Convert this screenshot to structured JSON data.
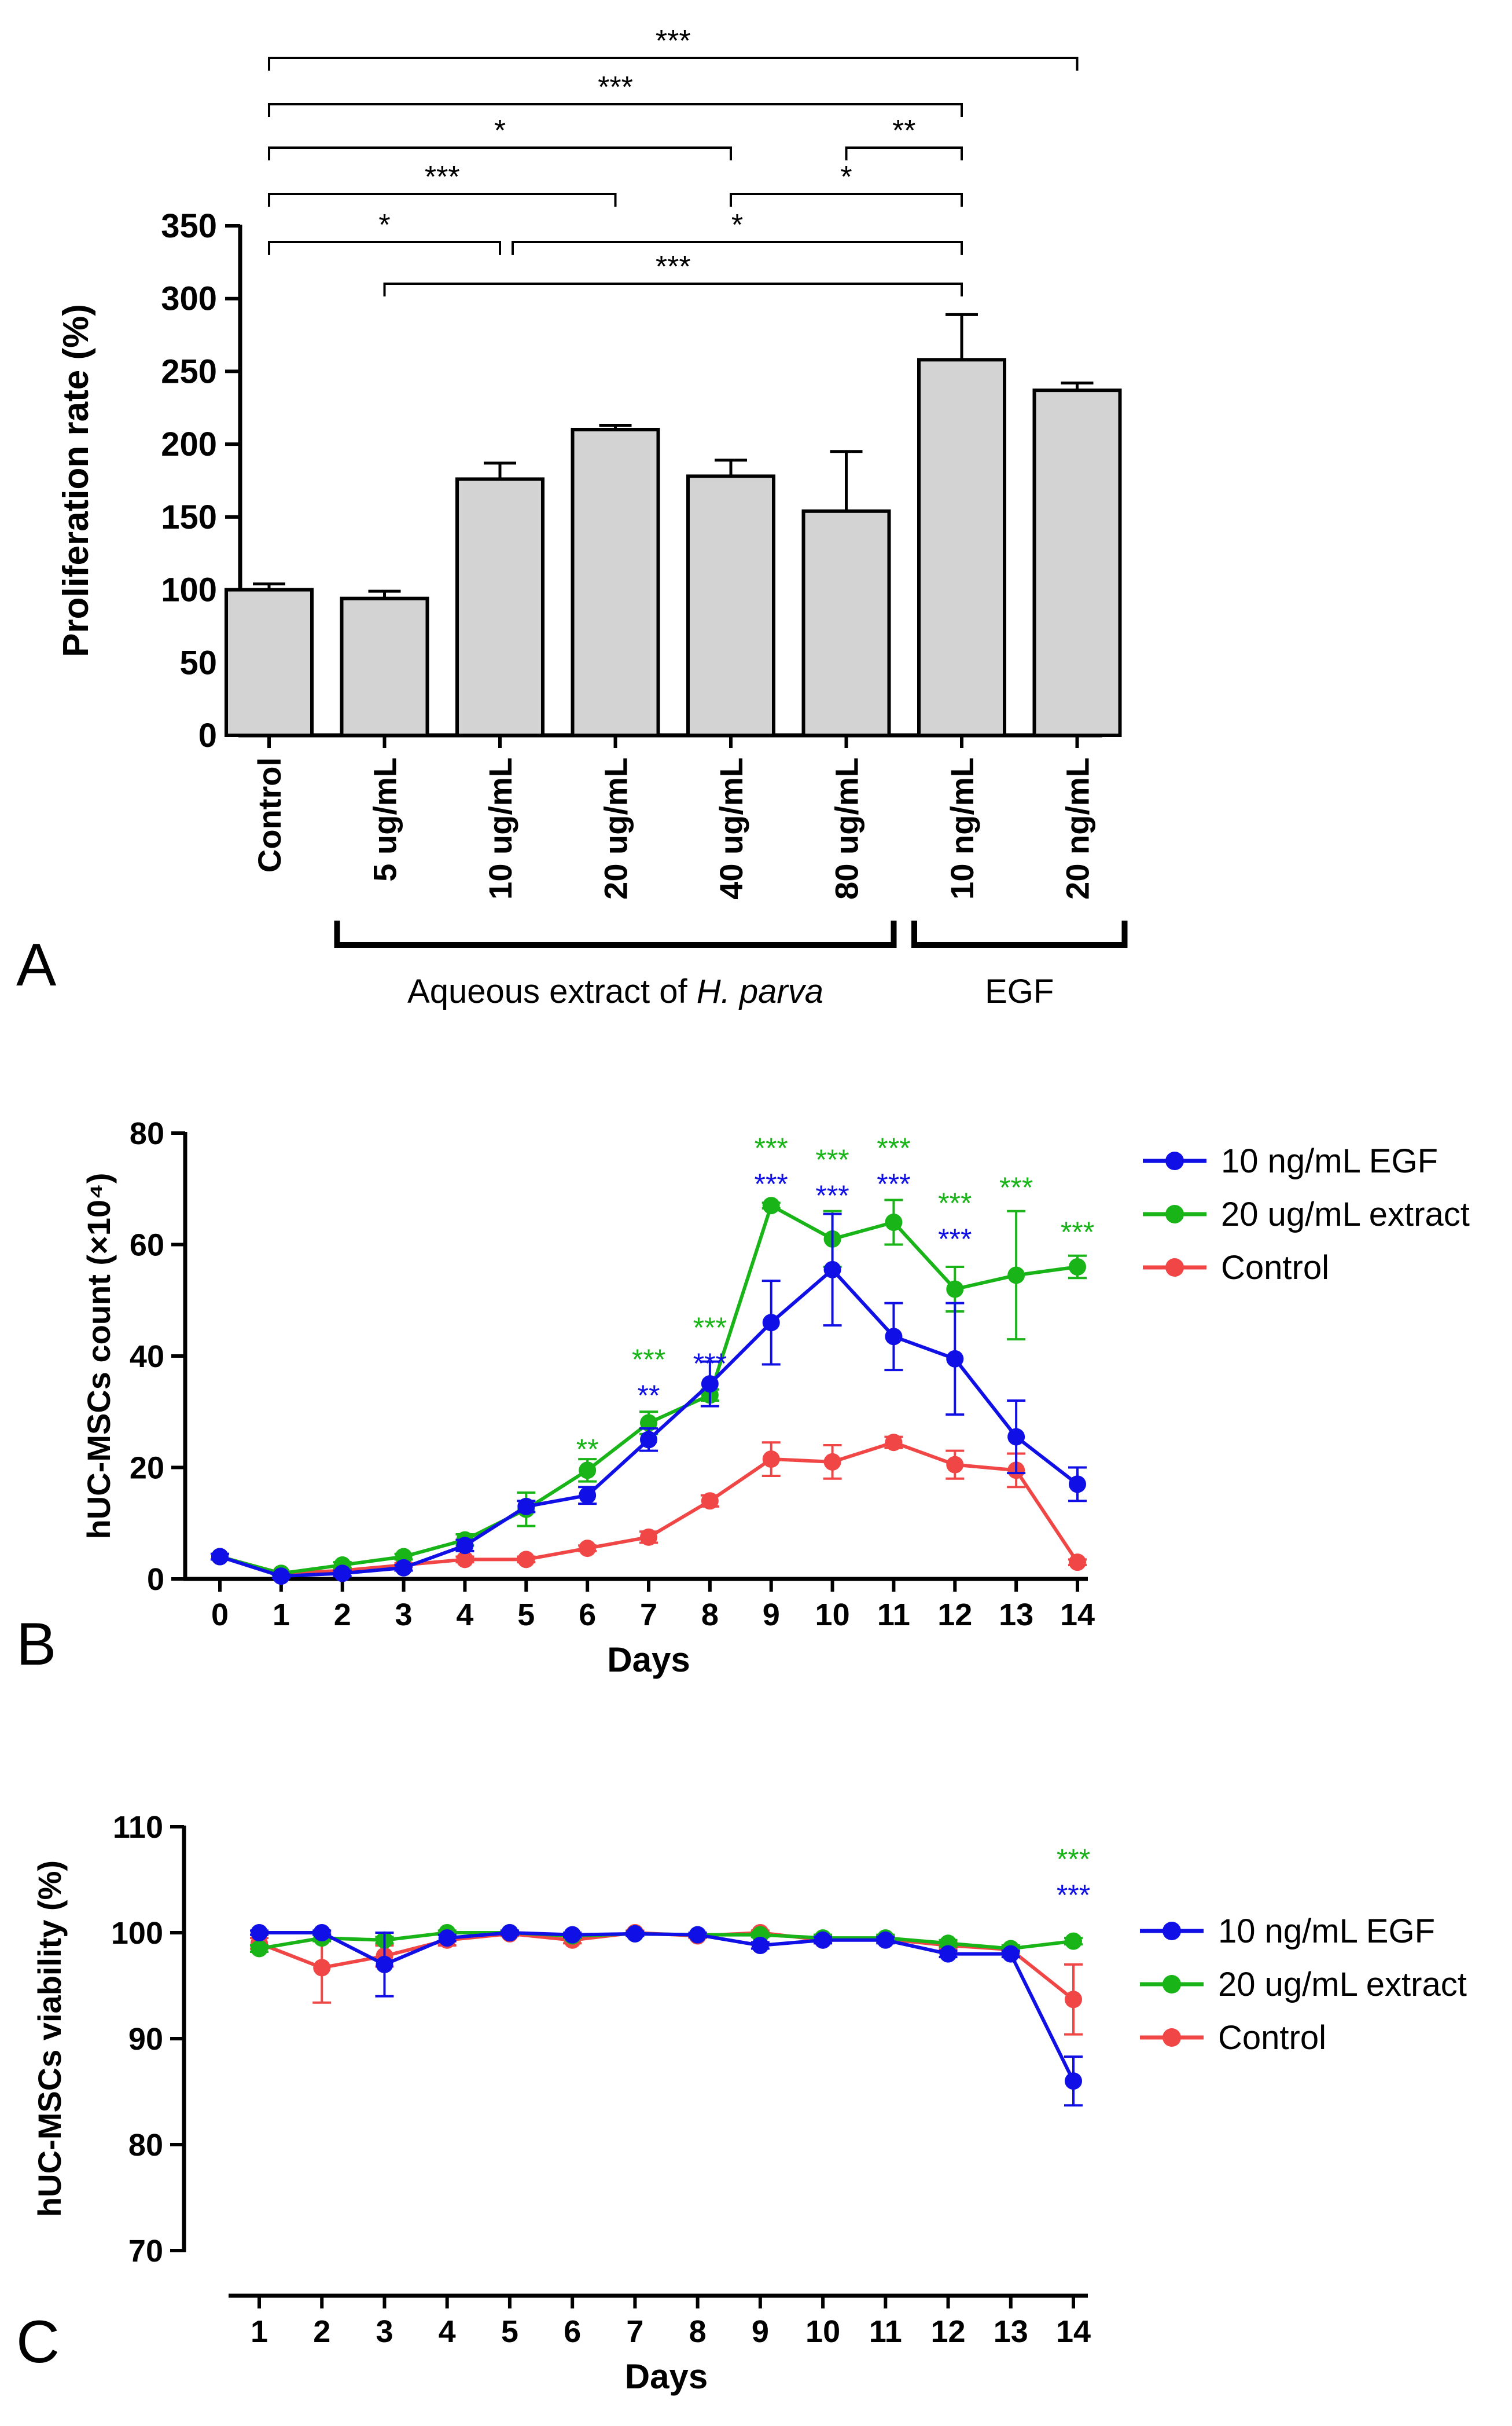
{
  "colors": {
    "blue": "#1010e6",
    "green": "#18b418",
    "red": "#f04646",
    "bar_fill": "#d3d3d3",
    "ink": "#000000"
  },
  "panels": {
    "a": {
      "letter": "A"
    },
    "b": {
      "letter": "B"
    },
    "c": {
      "letter": "C"
    }
  },
  "chart_data": [
    {
      "panel": "A",
      "type": "bar",
      "title": "",
      "ylabel": "Proliferation rate (%)",
      "xlabel": "",
      "ylim": [
        0,
        350
      ],
      "yticks": [
        "0",
        "50",
        "100",
        "150",
        "200",
        "250",
        "300",
        "350"
      ],
      "categories": [
        "Control",
        "5 ug/mL",
        "10 ug/mL",
        "20 ug/mL",
        "40 ug/mL",
        "80 ug/mL",
        "10 ng/mL",
        "20 ng/mL"
      ],
      "values": [
        100,
        94,
        176,
        210,
        178,
        154,
        258,
        237
      ],
      "errors": [
        4,
        5,
        11,
        3,
        11,
        41,
        31,
        5
      ],
      "groups": [
        {
          "label_prefix": "Aqueous extract of ",
          "label_italic": "H. parva",
          "from": 1,
          "to": 5
        },
        {
          "label_prefix": "EGF",
          "label_italic": "",
          "from": 6,
          "to": 7
        }
      ],
      "significance": [
        {
          "from": 0,
          "to": 7,
          "label": "***"
        },
        {
          "from": 0,
          "to": 6,
          "label": "***"
        },
        {
          "from": 0,
          "to": 4,
          "label": "*"
        },
        {
          "from": 5,
          "to": 6,
          "label": "**"
        },
        {
          "from": 0,
          "to": 3,
          "label": "***"
        },
        {
          "from": 4,
          "to": 6,
          "label": "*"
        },
        {
          "from": 0,
          "to": 2,
          "label": "*"
        },
        {
          "from": 2,
          "to": 6,
          "label": "*"
        },
        {
          "from": 1,
          "to": 6,
          "label": "***"
        }
      ]
    },
    {
      "panel": "B",
      "type": "line",
      "title": "",
      "ylabel": "hUC-MSCs count (×10⁴)",
      "xlabel": "Days",
      "ylim": [
        0,
        80
      ],
      "yticks": [
        "0",
        "20",
        "40",
        "60",
        "80"
      ],
      "x": [
        0,
        1,
        2,
        3,
        4,
        5,
        6,
        7,
        8,
        9,
        10,
        11,
        12,
        13,
        14
      ],
      "legend": "right",
      "series": [
        {
          "name": "10 ng/mL EGF",
          "color": "blue",
          "values": [
            4,
            0.5,
            1,
            2,
            6,
            13,
            15,
            25,
            35,
            46,
            55.5,
            43.5,
            39.5,
            25.5,
            17
          ],
          "errors": [
            0.5,
            0.3,
            0.5,
            0.5,
            1,
            1,
            1.5,
            2,
            4,
            7.5,
            10,
            6,
            10,
            6.5,
            3
          ]
        },
        {
          "name": "20 ug/mL extract",
          "color": "green",
          "values": [
            4,
            1,
            2.5,
            4,
            7,
            12.5,
            19.5,
            28,
            33,
            67,
            61,
            64,
            52,
            54.5,
            56
          ],
          "errors": [
            0.5,
            0.3,
            0.5,
            0.5,
            1,
            3,
            2,
            2,
            1,
            0.5,
            5,
            4,
            4,
            11.5,
            2
          ]
        },
        {
          "name": "Control",
          "color": "red",
          "values": [
            4,
            1,
            1.5,
            2.5,
            3.5,
            3.5,
            5.5,
            7.5,
            14,
            21.5,
            21,
            24.5,
            20.5,
            19.5,
            3
          ],
          "errors": [
            0.5,
            0.3,
            0.3,
            0.3,
            0.5,
            0.5,
            0.5,
            1,
            1,
            3,
            3,
            1,
            2.5,
            3,
            0.5
          ]
        }
      ],
      "annotations": [
        {
          "x": 6,
          "stars": [
            {
              "label": "**",
              "color": "green"
            }
          ]
        },
        {
          "x": 7,
          "stars": [
            {
              "label": "***",
              "color": "green"
            },
            {
              "label": "**",
              "color": "blue"
            }
          ]
        },
        {
          "x": 8,
          "stars": [
            {
              "label": "***",
              "color": "green"
            },
            {
              "label": "***",
              "color": "blue"
            }
          ]
        },
        {
          "x": 9,
          "stars": [
            {
              "label": "***",
              "color": "green"
            },
            {
              "label": "***",
              "color": "blue"
            }
          ]
        },
        {
          "x": 10,
          "stars": [
            {
              "label": "***",
              "color": "green"
            },
            {
              "label": "***",
              "color": "blue"
            }
          ]
        },
        {
          "x": 11,
          "stars": [
            {
              "label": "***",
              "color": "green"
            },
            {
              "label": "***",
              "color": "blue"
            }
          ]
        },
        {
          "x": 12,
          "stars": [
            {
              "label": "***",
              "color": "green"
            },
            {
              "label": "***",
              "color": "blue"
            }
          ]
        },
        {
          "x": 13,
          "stars": [
            {
              "label": "***",
              "color": "green"
            }
          ]
        },
        {
          "x": 14,
          "stars": [
            {
              "label": "***",
              "color": "green"
            }
          ]
        }
      ]
    },
    {
      "panel": "C",
      "type": "line",
      "title": "",
      "ylabel": "hUC-MSCs viability (%)",
      "xlabel": "Days",
      "ylim": [
        70,
        110
      ],
      "yticks": [
        "70",
        "80",
        "90",
        "100",
        "110"
      ],
      "x": [
        1,
        2,
        3,
        4,
        5,
        6,
        7,
        8,
        9,
        10,
        11,
        12,
        13,
        14
      ],
      "legend": "right",
      "series": [
        {
          "name": "10 ng/mL EGF",
          "color": "blue",
          "values": [
            100,
            100,
            97,
            99.5,
            100,
            99.8,
            99.9,
            99.8,
            98.8,
            99.3,
            99.3,
            98,
            98,
            86
          ],
          "errors": [
            0.2,
            0.2,
            3,
            0.3,
            0.2,
            0.2,
            0.2,
            0.2,
            0.3,
            0.3,
            0.3,
            0.3,
            0.3,
            2.3
          ]
        },
        {
          "name": "20 ug/mL extract",
          "color": "green",
          "values": [
            98.5,
            99.5,
            99.3,
            100,
            100,
            99.7,
            99.9,
            99.8,
            99.8,
            99.5,
            99.5,
            99,
            98.5,
            99.2
          ],
          "errors": [
            0.3,
            0.3,
            0.3,
            0.2,
            0.2,
            0.2,
            0.2,
            0.2,
            0.2,
            0.3,
            0.3,
            0.3,
            0.3,
            0.3
          ]
        },
        {
          "name": "Control",
          "color": "red",
          "values": [
            99,
            96.7,
            97.8,
            99.3,
            99.9,
            99.3,
            100,
            99.7,
            100,
            99.3,
            99.4,
            98.8,
            98.4,
            93.7
          ],
          "errors": [
            0.5,
            3.3,
            1,
            0.5,
            0.2,
            0.3,
            0.2,
            0.2,
            0.2,
            0.3,
            0.3,
            0.3,
            0.3,
            3.3
          ]
        }
      ],
      "annotations": [
        {
          "x": 14,
          "stars": [
            {
              "label": "***",
              "color": "green"
            },
            {
              "label": "***",
              "color": "blue"
            }
          ]
        }
      ]
    }
  ]
}
